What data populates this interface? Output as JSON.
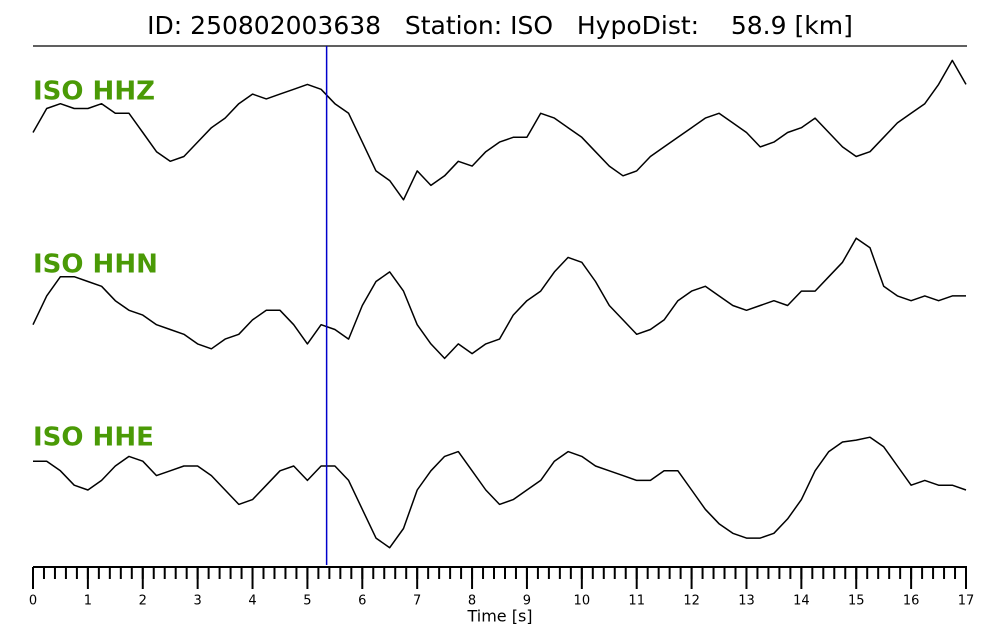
{
  "chart_data": {
    "type": "line",
    "title": "ID: 250802003638   Station: ISO   HypoDist:    58.9 [km]",
    "xlabel": "Time [s]",
    "xlim": [
      0,
      17
    ],
    "xticks": [
      0,
      1,
      2,
      3,
      4,
      5,
      6,
      7,
      8,
      9,
      10,
      11,
      12,
      13,
      14,
      15,
      16,
      17
    ],
    "xminor_step": 0.2,
    "ylim": [
      -90,
      90
    ],
    "label_color": "#4a9a06",
    "pick": {
      "time": 5.35,
      "color": "#0000cc"
    },
    "x": [
      0,
      0.25,
      0.5,
      0.75,
      1,
      1.25,
      1.5,
      1.75,
      2,
      2.25,
      2.5,
      2.75,
      3,
      3.25,
      3.5,
      3.75,
      4,
      4.25,
      4.5,
      4.75,
      5,
      5.25,
      5.5,
      5.75,
      6,
      6.25,
      6.5,
      6.75,
      7,
      7.25,
      7.5,
      7.75,
      8,
      8.25,
      8.5,
      8.75,
      9,
      9.25,
      9.5,
      9.75,
      10,
      10.25,
      10.5,
      10.75,
      11,
      11.25,
      11.5,
      11.75,
      12,
      12.25,
      12.5,
      12.75,
      13,
      13.25,
      13.5,
      13.75,
      14,
      14.25,
      14.5,
      14.75,
      15,
      15.25,
      15.5,
      15.75,
      16,
      16.25,
      16.5,
      16.75,
      17
    ],
    "series": [
      {
        "name": "ISO HHZ",
        "color": "#000000",
        "values": [
          0,
          25,
          30,
          25,
          25,
          30,
          20,
          20,
          0,
          -20,
          -30,
          -25,
          -10,
          5,
          15,
          30,
          40,
          35,
          40,
          45,
          50,
          45,
          30,
          20,
          -10,
          -40,
          -50,
          -70,
          -40,
          -55,
          -45,
          -30,
          -35,
          -20,
          -10,
          -5,
          -5,
          20,
          15,
          5,
          -5,
          -20,
          -35,
          -45,
          -40,
          -25,
          -15,
          -5,
          5,
          15,
          20,
          10,
          0,
          -15,
          -10,
          0,
          5,
          15,
          0,
          -15,
          -25,
          -20,
          -5,
          10,
          20,
          30,
          50,
          75,
          50
        ]
      },
      {
        "name": "ISO HHN",
        "color": "#000000",
        "values": [
          -20,
          10,
          30,
          30,
          25,
          20,
          5,
          -5,
          -10,
          -20,
          -25,
          -30,
          -40,
          -45,
          -35,
          -30,
          -15,
          -5,
          -5,
          -20,
          -40,
          -20,
          -25,
          -35,
          0,
          25,
          35,
          15,
          -20,
          -40,
          -55,
          -40,
          -50,
          -40,
          -35,
          -10,
          5,
          15,
          35,
          50,
          45,
          25,
          0,
          -15,
          -30,
          -25,
          -15,
          5,
          15,
          20,
          10,
          0,
          -5,
          0,
          5,
          0,
          15,
          15,
          30,
          45,
          70,
          60,
          20,
          10,
          5,
          10,
          5,
          10,
          10
        ]
      },
      {
        "name": "ISO HHE",
        "color": "#000000",
        "values": [
          18,
          18,
          8,
          -7,
          -12,
          -2,
          13,
          23,
          18,
          3,
          8,
          13,
          13,
          3,
          -12,
          -27,
          -22,
          -7,
          8,
          13,
          -2,
          13,
          13,
          -2,
          -32,
          -62,
          -72,
          -52,
          -12,
          8,
          23,
          28,
          8,
          -12,
          -27,
          -22,
          -12,
          -2,
          18,
          28,
          23,
          13,
          8,
          3,
          -2,
          -2,
          8,
          8,
          -12,
          -32,
          -47,
          -57,
          -62,
          -62,
          -57,
          -42,
          -22,
          8,
          28,
          38,
          40,
          43,
          33,
          13,
          -7,
          -2,
          -7,
          -7,
          -12
        ]
      }
    ]
  }
}
